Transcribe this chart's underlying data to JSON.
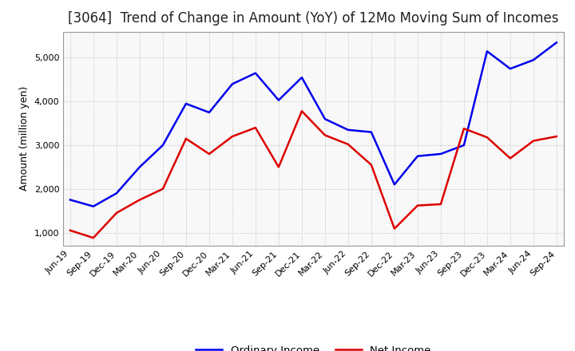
{
  "title": "[3064]  Trend of Change in Amount (YoY) of 12Mo Moving Sum of Incomes",
  "ylabel": "Amount (million yen)",
  "x_labels": [
    "Jun-19",
    "Sep-19",
    "Dec-19",
    "Mar-20",
    "Jun-20",
    "Sep-20",
    "Dec-20",
    "Mar-21",
    "Jun-21",
    "Sep-21",
    "Dec-21",
    "Mar-22",
    "Jun-22",
    "Sep-22",
    "Dec-22",
    "Mar-23",
    "Jun-23",
    "Sep-23",
    "Dec-23",
    "Mar-24",
    "Jun-24",
    "Sep-24"
  ],
  "ordinary_income": [
    1750,
    1600,
    1900,
    2500,
    3000,
    3950,
    3750,
    4400,
    4650,
    4030,
    4550,
    3600,
    3350,
    3300,
    2100,
    2750,
    2800,
    3000,
    5150,
    4750,
    4950,
    5350
  ],
  "net_income": [
    1050,
    880,
    1450,
    1750,
    2000,
    3150,
    2800,
    3200,
    3400,
    2500,
    3780,
    3230,
    3020,
    2550,
    1090,
    1620,
    1650,
    3380,
    3180,
    2700,
    3100,
    3200
  ],
  "ordinary_color": "#0000EE",
  "net_color": "#DD0000",
  "ylim": [
    700,
    5600
  ],
  "yticks": [
    1000,
    2000,
    3000,
    4000,
    5000
  ],
  "background_color": "#FFFFFF",
  "plot_bg_color": "#F8F8F8",
  "grid_color": "#BBBBBB",
  "title_fontsize": 12,
  "axis_fontsize": 9,
  "tick_fontsize": 8,
  "legend_labels": [
    "Ordinary Income",
    "Net Income"
  ]
}
